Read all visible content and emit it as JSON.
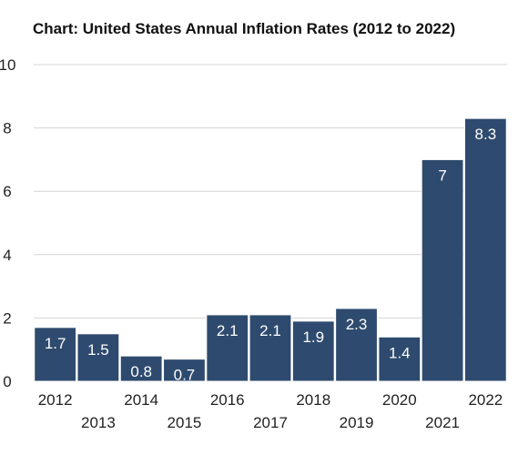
{
  "chart_data": {
    "type": "bar",
    "title": "Chart: United States Annual Inflation Rates (2012 to 2022)",
    "xlabel": "",
    "ylabel": "",
    "categories": [
      "2012",
      "2013",
      "2014",
      "2015",
      "2016",
      "2017",
      "2018",
      "2019",
      "2020",
      "2021",
      "2022"
    ],
    "values": [
      1.7,
      1.5,
      0.8,
      0.7,
      2.1,
      2.1,
      1.9,
      2.3,
      1.4,
      7,
      8.3
    ],
    "data_labels": [
      "1.7",
      "1.5",
      "0.8",
      "0.7",
      "2.1",
      "2.1",
      "1.9",
      "2.3",
      "1.4",
      "7",
      "8.3"
    ],
    "ylim": [
      0,
      10
    ],
    "yticks": [
      "0",
      "2",
      "4",
      "6",
      "8",
      "10"
    ],
    "grid": true,
    "legend": "none",
    "colors": {
      "bar": "#2e4a6e",
      "grid": "#d4d4d4",
      "label": "#ffffff",
      "text": "#222222"
    }
  }
}
